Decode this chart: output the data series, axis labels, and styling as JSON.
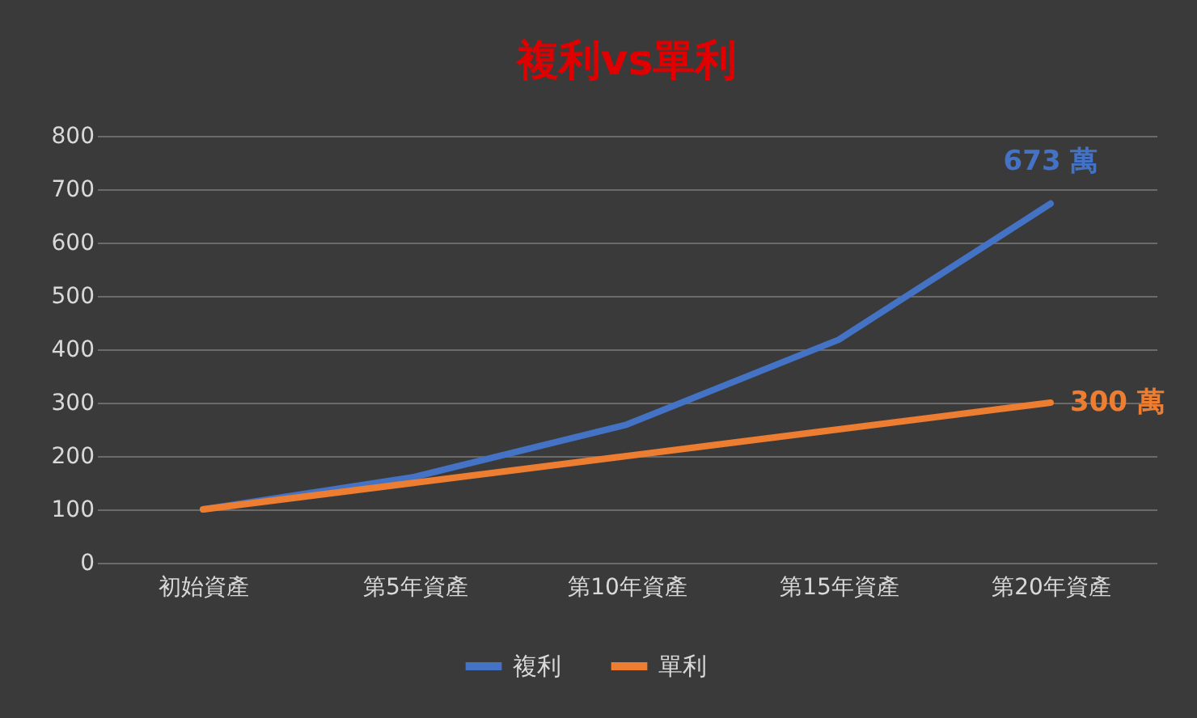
{
  "chart_data": {
    "type": "line",
    "title": "複利vs單利",
    "categories": [
      "初始資產",
      "第5年資產",
      "第10年資產",
      "第15年資產",
      "第20年資產"
    ],
    "series": [
      {
        "name": "複利",
        "color": "#4472c4",
        "values": [
          100,
          161,
          259,
          418,
          673
        ],
        "value_labels": [
          null,
          null,
          null,
          null,
          "673 萬"
        ]
      },
      {
        "name": "單利",
        "color": "#ed7d31",
        "values": [
          100,
          150,
          200,
          250,
          300
        ],
        "value_labels": [
          null,
          null,
          null,
          null,
          "300 萬"
        ]
      }
    ],
    "ylim": [
      0,
      800
    ],
    "yticks": [
      0,
      100,
      200,
      300,
      400,
      500,
      600,
      700,
      800
    ],
    "grid": "y",
    "legend": "bottom"
  }
}
